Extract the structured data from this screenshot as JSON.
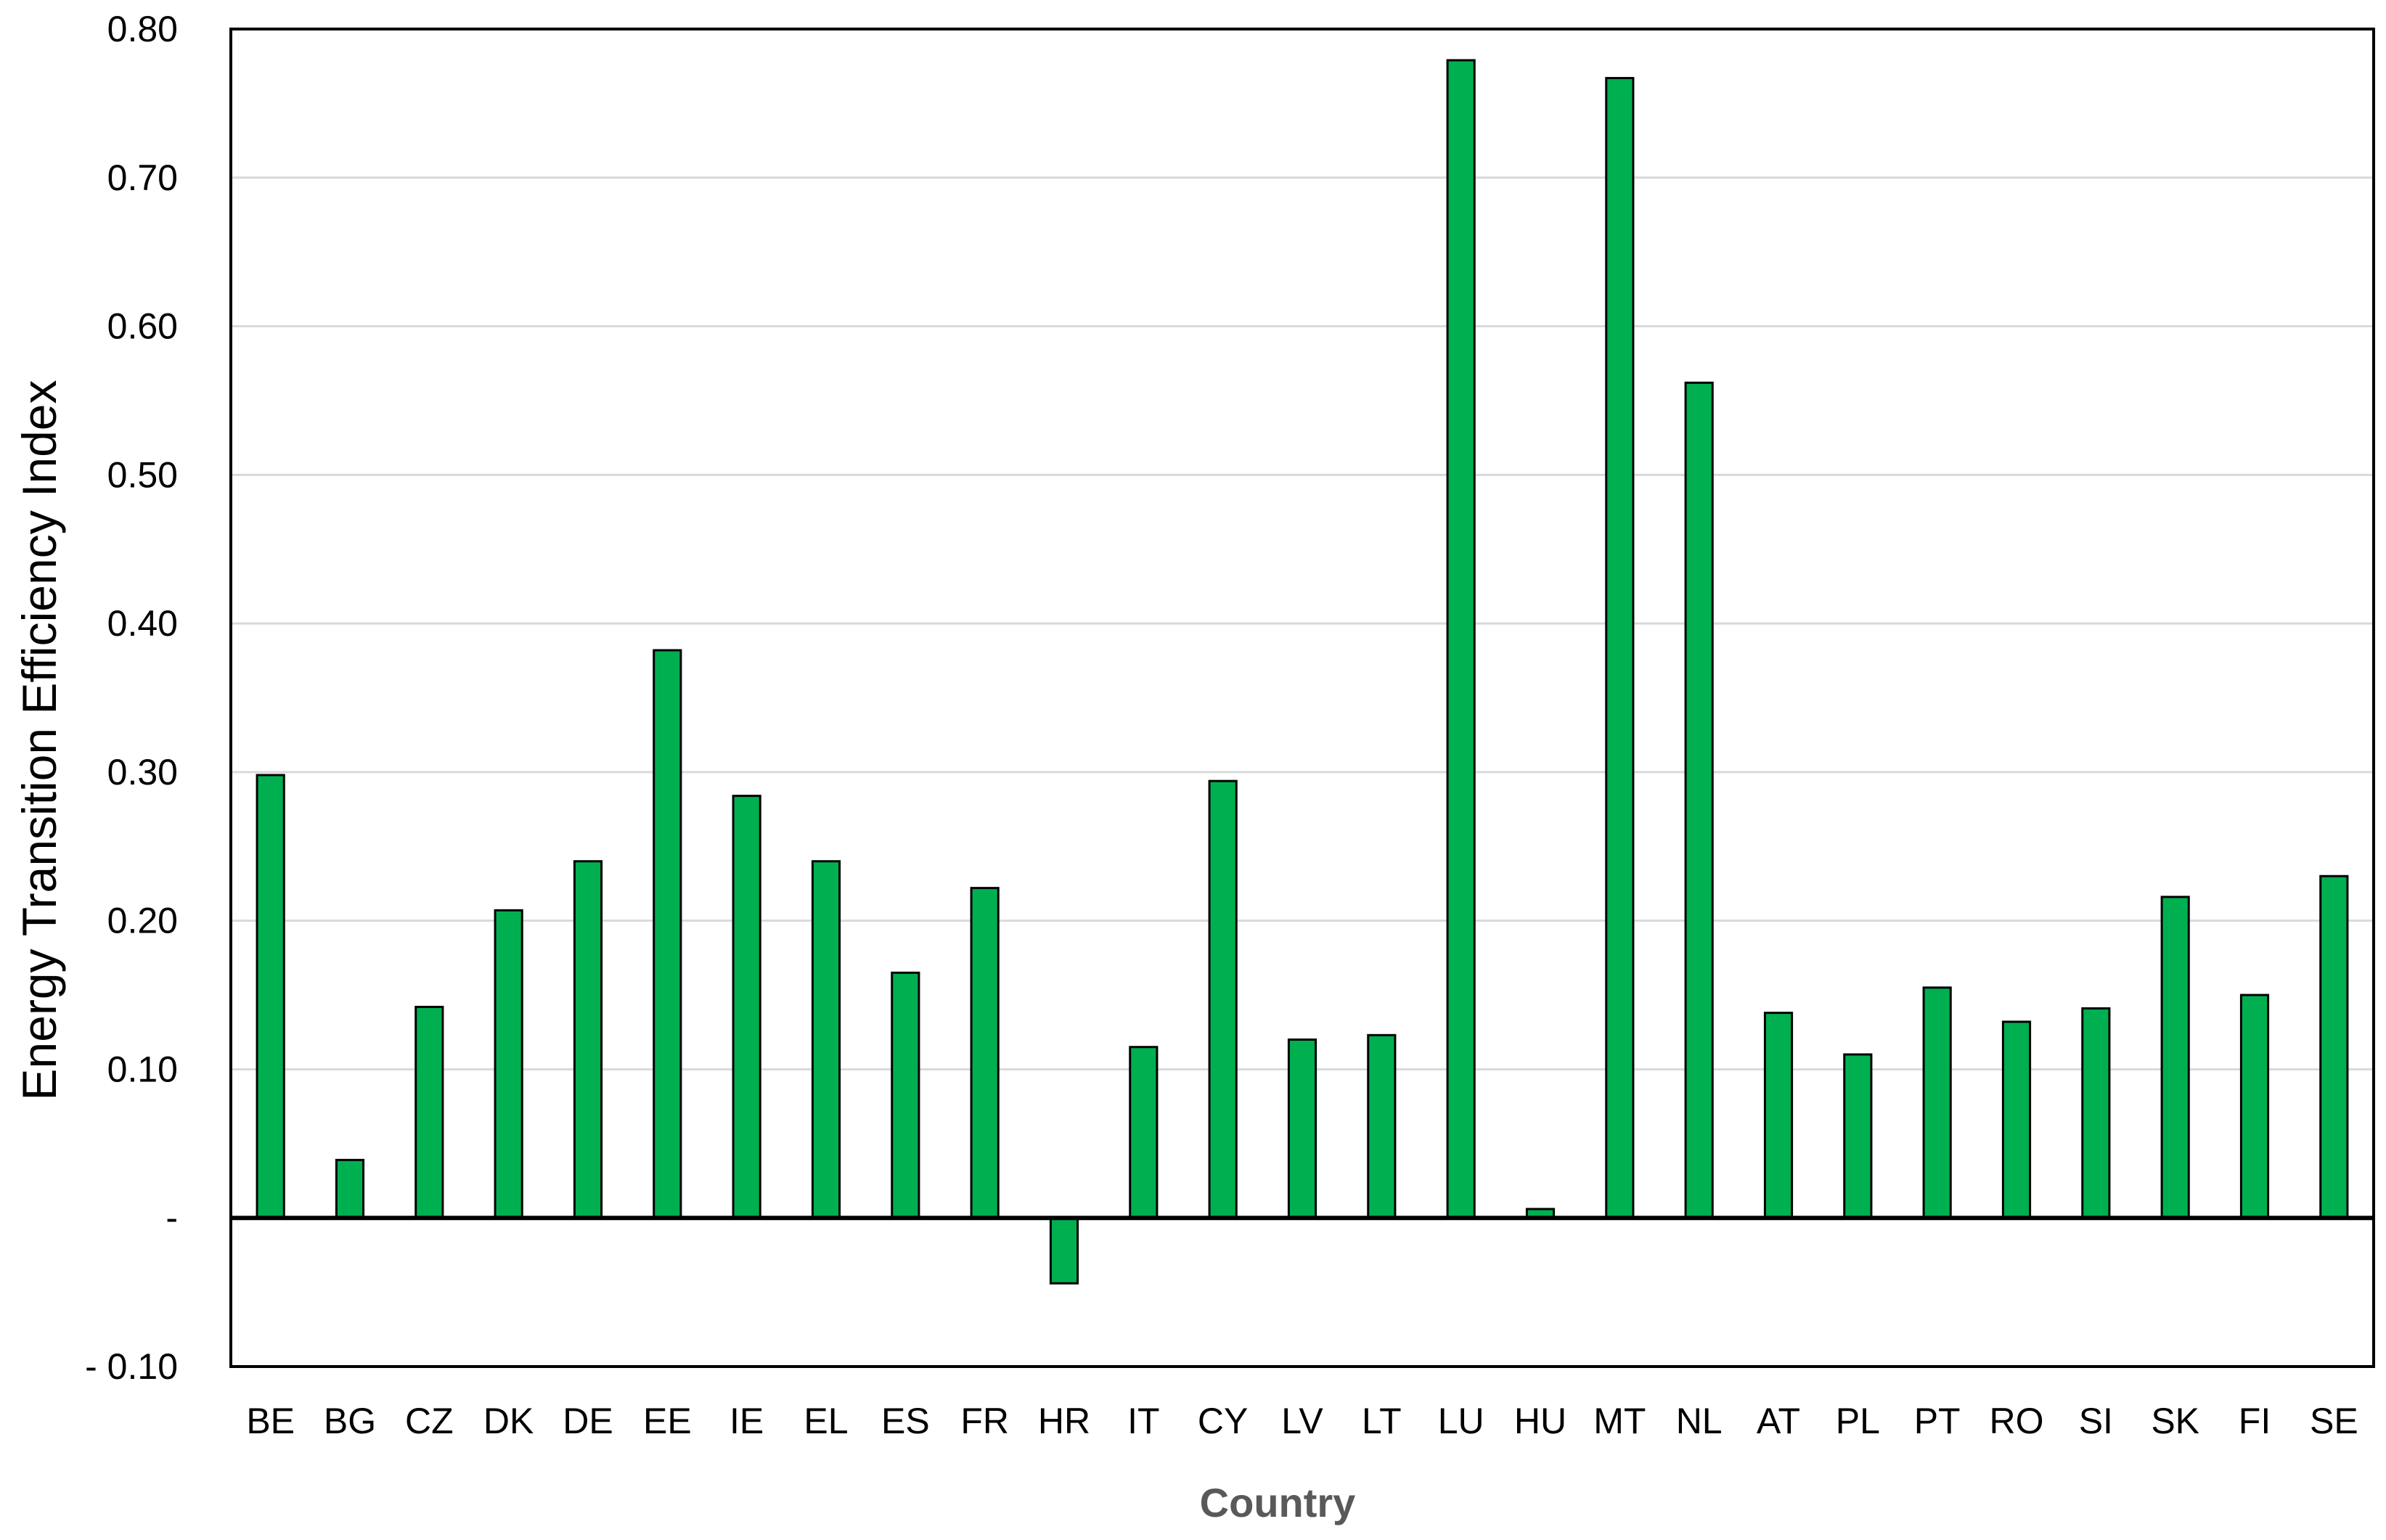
{
  "chart_data": {
    "type": "bar",
    "xlabel": "Country",
    "ylabel": "Energy Transition Efficiency Index",
    "ylim": [
      -0.1,
      0.8
    ],
    "yticks": [
      -0.1,
      0,
      0.1,
      0.2,
      0.3,
      0.4,
      0.5,
      0.6,
      0.7,
      0.8
    ],
    "ytick_labels": [
      "- 0.10",
      "-",
      "0.10",
      "0.20",
      "0.30",
      "0.40",
      "0.50",
      "0.60",
      "0.70",
      "0.80"
    ],
    "grid": true,
    "legend": "none",
    "bar_color": "#00B050",
    "categories": [
      "BE",
      "BG",
      "CZ",
      "DK",
      "DE",
      "EE",
      "IE",
      "EL",
      "ES",
      "FR",
      "HR",
      "IT",
      "CY",
      "LV",
      "LT",
      "LU",
      "HU",
      "MT",
      "NL",
      "AT",
      "PL",
      "PT",
      "RO",
      "SI",
      "SK",
      "FI",
      "SE"
    ],
    "values": [
      0.298,
      0.039,
      0.142,
      0.207,
      0.24,
      0.382,
      0.284,
      0.24,
      0.165,
      0.222,
      -0.044,
      0.115,
      0.294,
      0.12,
      0.123,
      0.779,
      0.006,
      0.767,
      0.562,
      0.138,
      0.11,
      0.155,
      0.132,
      0.141,
      0.216,
      0.15,
      0.23
    ]
  }
}
